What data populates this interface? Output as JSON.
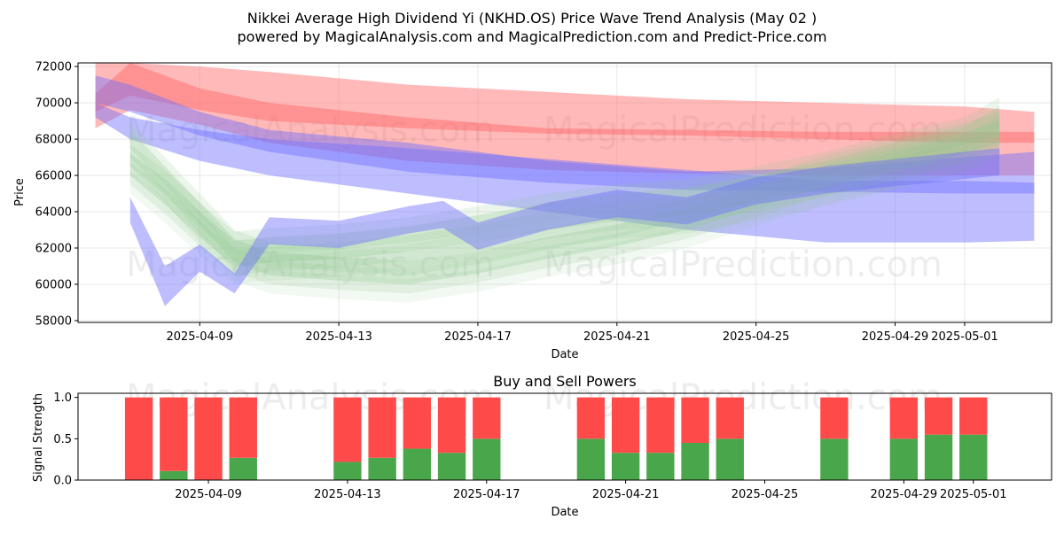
{
  "header": {
    "title": "Nikkei Average High Dividend Yi (NKHD.OS) Price Wave Trend Analysis (May 02 )",
    "subtitle": "powered by MagicalAnalysis.com and MagicalPrediction.com and Predict-Price.com"
  },
  "watermarks": {
    "left": "MagicalAnalysis.com",
    "right": "MagicalPrediction.com"
  },
  "colors": {
    "bullish_band": "#90c890",
    "bearish_band": "#ff6464",
    "neutral_band": "#6e6eff",
    "buy_bar": "#4aa64a",
    "sell_bar": "#ff4a4a"
  },
  "chart_data": [
    {
      "type": "area",
      "xlabel": "Date",
      "ylabel": "Price",
      "ylim": [
        57900,
        72200
      ],
      "xlim": [
        "2025-04-05T12:00",
        "2025-05-03T12:00"
      ],
      "x_ticks": [
        "2025-04-09",
        "2025-04-13",
        "2025-04-17",
        "2025-04-21",
        "2025-04-25",
        "2025-04-29",
        "2025-05-01"
      ],
      "y_ticks": [
        58000,
        60000,
        62000,
        64000,
        66000,
        68000,
        70000,
        72000
      ],
      "grid": true,
      "series": [
        {
          "color": "red",
          "x": [
            "2025-04-06",
            "2025-04-07",
            "2025-04-09",
            "2025-04-11",
            "2025-04-15",
            "2025-04-19",
            "2025-04-23",
            "2025-04-27",
            "2025-05-01",
            "2025-05-03"
          ],
          "upper": [
            72200,
            72200,
            72000,
            71700,
            71000,
            70600,
            70200,
            70000,
            69800,
            69500
          ],
          "lower": [
            69500,
            70400,
            69600,
            69000,
            68600,
            68300,
            68200,
            68000,
            67800,
            67800
          ]
        },
        {
          "color": "red",
          "x": [
            "2025-04-06",
            "2025-04-07",
            "2025-04-09",
            "2025-04-11",
            "2025-04-15",
            "2025-04-19",
            "2025-04-23",
            "2025-04-27",
            "2025-05-01",
            "2025-05-03"
          ],
          "upper": [
            70500,
            72200,
            70800,
            70000,
            69200,
            68600,
            68500,
            68400,
            68400,
            68400
          ],
          "lower": [
            68600,
            69600,
            68800,
            67800,
            66800,
            66300,
            66100,
            66000,
            66000,
            66000
          ]
        },
        {
          "color": "blue",
          "x": [
            "2025-04-06",
            "2025-04-07",
            "2025-04-09",
            "2025-04-11",
            "2025-04-15",
            "2025-04-19",
            "2025-04-23",
            "2025-04-27",
            "2025-05-01",
            "2025-05-03"
          ],
          "upper": [
            70000,
            69200,
            68500,
            68000,
            67500,
            66900,
            66300,
            65700,
            65700,
            65600
          ],
          "lower": [
            69200,
            68000,
            66800,
            66000,
            65000,
            64000,
            63000,
            62300,
            62300,
            62400
          ]
        },
        {
          "color": "blue",
          "x": [
            "2025-04-06",
            "2025-04-07",
            "2025-04-09",
            "2025-04-11",
            "2025-04-15",
            "2025-04-19",
            "2025-04-23",
            "2025-04-27",
            "2025-05-01",
            "2025-05-03"
          ],
          "upper": [
            71500,
            71000,
            69500,
            68500,
            67800,
            66800,
            66200,
            66400,
            67000,
            67300
          ],
          "lower": [
            70000,
            69500,
            68200,
            67300,
            66200,
            65600,
            65200,
            65100,
            65000,
            65000
          ]
        },
        {
          "color": "green",
          "x": [
            "2025-04-07",
            "2025-04-08",
            "2025-04-09",
            "2025-04-10",
            "2025-04-11",
            "2025-04-13",
            "2025-04-15",
            "2025-04-17",
            "2025-04-19",
            "2025-04-21",
            "2025-04-23",
            "2025-04-25",
            "2025-04-27",
            "2025-04-29",
            "2025-05-01",
            "2025-05-02"
          ],
          "upper": [
            68500,
            66500,
            64500,
            62500,
            61800,
            61500,
            61300,
            61800,
            62600,
            63300,
            64200,
            65400,
            66600,
            67500,
            68400,
            69000
          ],
          "lower": [
            67500,
            65500,
            63300,
            61200,
            60500,
            60200,
            60000,
            60600,
            61400,
            62100,
            63000,
            64200,
            65400,
            66300,
            67200,
            67800
          ]
        },
        {
          "color": "green",
          "x": [
            "2025-04-07",
            "2025-04-08",
            "2025-04-09",
            "2025-04-10",
            "2025-04-11",
            "2025-04-13",
            "2025-04-15",
            "2025-04-17",
            "2025-04-19",
            "2025-04-21",
            "2025-04-23",
            "2025-04-25",
            "2025-04-27",
            "2025-04-29",
            "2025-05-01",
            "2025-05-02"
          ],
          "upper": [
            67200,
            65800,
            64000,
            62400,
            62600,
            62800,
            63200,
            63800,
            64500,
            65000,
            65300,
            66000,
            66800,
            67800,
            68700,
            69800
          ],
          "lower": [
            66000,
            64400,
            62600,
            61000,
            61200,
            61400,
            61800,
            62300,
            63000,
            63500,
            63800,
            64500,
            65300,
            66200,
            67200,
            68200
          ]
        },
        {
          "color": "blue",
          "x": [
            "2025-04-07",
            "2025-04-08",
            "2025-04-09",
            "2025-04-10",
            "2025-04-11",
            "2025-04-13",
            "2025-04-15",
            "2025-04-16",
            "2025-04-17",
            "2025-04-19",
            "2025-04-21",
            "2025-04-23",
            "2025-04-25",
            "2025-04-27",
            "2025-04-29",
            "2025-05-01",
            "2025-05-02"
          ],
          "upper": [
            64800,
            61000,
            62200,
            60600,
            63700,
            63500,
            64300,
            64600,
            63400,
            64500,
            65200,
            64800,
            65900,
            66500,
            66900,
            67300,
            67500
          ],
          "lower": [
            63400,
            58800,
            60700,
            59500,
            62200,
            62000,
            62800,
            63100,
            61900,
            63000,
            63700,
            63300,
            64400,
            65000,
            65400,
            65800,
            66000
          ]
        }
      ]
    },
    {
      "type": "bar",
      "title": "Buy and Sell Powers",
      "xlabel": "Date",
      "ylabel": "Signal Strength",
      "ylim": [
        0,
        1.05
      ],
      "y_ticks": [
        0.0,
        0.5,
        1.0
      ],
      "x_ticks": [
        "2025-04-09",
        "2025-04-13",
        "2025-04-17",
        "2025-04-21",
        "2025-04-25",
        "2025-04-29",
        "2025-05-01"
      ],
      "stacked": true,
      "series": [
        {
          "name": "buy",
          "x": [
            "2025-04-07",
            "2025-04-08",
            "2025-04-09",
            "2025-04-10",
            "2025-04-13",
            "2025-04-14",
            "2025-04-15",
            "2025-04-16",
            "2025-04-17",
            "2025-04-20",
            "2025-04-21",
            "2025-04-22",
            "2025-04-23",
            "2025-04-24",
            "2025-04-27",
            "2025-04-29",
            "2025-04-30",
            "2025-05-01"
          ],
          "values": [
            0.0,
            0.11,
            0.0,
            0.27,
            0.22,
            0.27,
            0.38,
            0.33,
            0.5,
            0.5,
            0.33,
            0.33,
            0.45,
            0.5,
            0.5,
            0.5,
            0.55,
            0.55
          ]
        },
        {
          "name": "sell",
          "x": [
            "2025-04-07",
            "2025-04-08",
            "2025-04-09",
            "2025-04-10",
            "2025-04-13",
            "2025-04-14",
            "2025-04-15",
            "2025-04-16",
            "2025-04-17",
            "2025-04-20",
            "2025-04-21",
            "2025-04-22",
            "2025-04-23",
            "2025-04-24",
            "2025-04-27",
            "2025-04-29",
            "2025-04-30",
            "2025-05-01"
          ],
          "values": [
            1.0,
            0.89,
            1.0,
            0.73,
            0.78,
            0.73,
            0.62,
            0.67,
            0.5,
            0.5,
            0.67,
            0.67,
            0.55,
            0.5,
            0.5,
            0.5,
            0.45,
            0.45
          ]
        }
      ]
    }
  ]
}
